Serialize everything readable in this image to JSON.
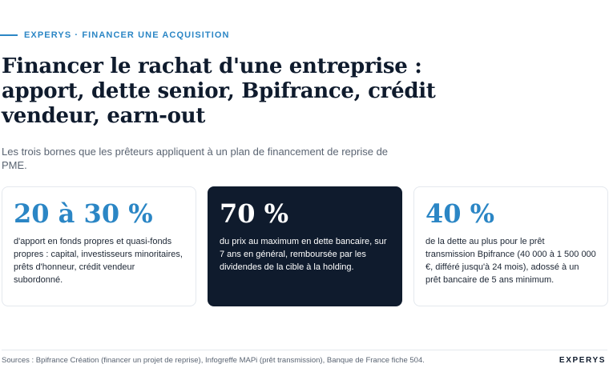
{
  "header": {
    "eyebrow": "EXPERYS · FINANCER UNE ACQUISITION",
    "title": "Financer le rachat d'une entreprise : apport, dette senior, Bpifrance, crédit vendeur, earn-out",
    "subtitle": "Les trois bornes que les prêteurs appliquent à un plan de financement de reprise de PME."
  },
  "cards": [
    {
      "value": "20 à 30 %",
      "text": "d'apport en fonds propres et quasi-fonds propres : capital, investisseurs minoritaires, prêts d'honneur, crédit vendeur subordonné."
    },
    {
      "value": "70 %",
      "text": "du prix au maximum en dette bancaire, sur 7 ans en général, remboursée par les dividendes de la cible à la holding."
    },
    {
      "value": "40 %",
      "text": "de la dette au plus pour le prêt transmission Bpifrance (40 000 à 1 500 000 €, différé jusqu'à 24 mois), adossé à un prêt bancaire de 5 ans minimum."
    }
  ],
  "footer": {
    "sources": "Sources : Bpifrance Création (financer un projet de reprise), Infogreffe MAPi (prêt transmission), Banque de France fiche 504.",
    "brand": "EXPERYS"
  },
  "colors": {
    "accent": "#2b86c5",
    "navy": "#0f1b2d",
    "muted": "#5a6472"
  }
}
